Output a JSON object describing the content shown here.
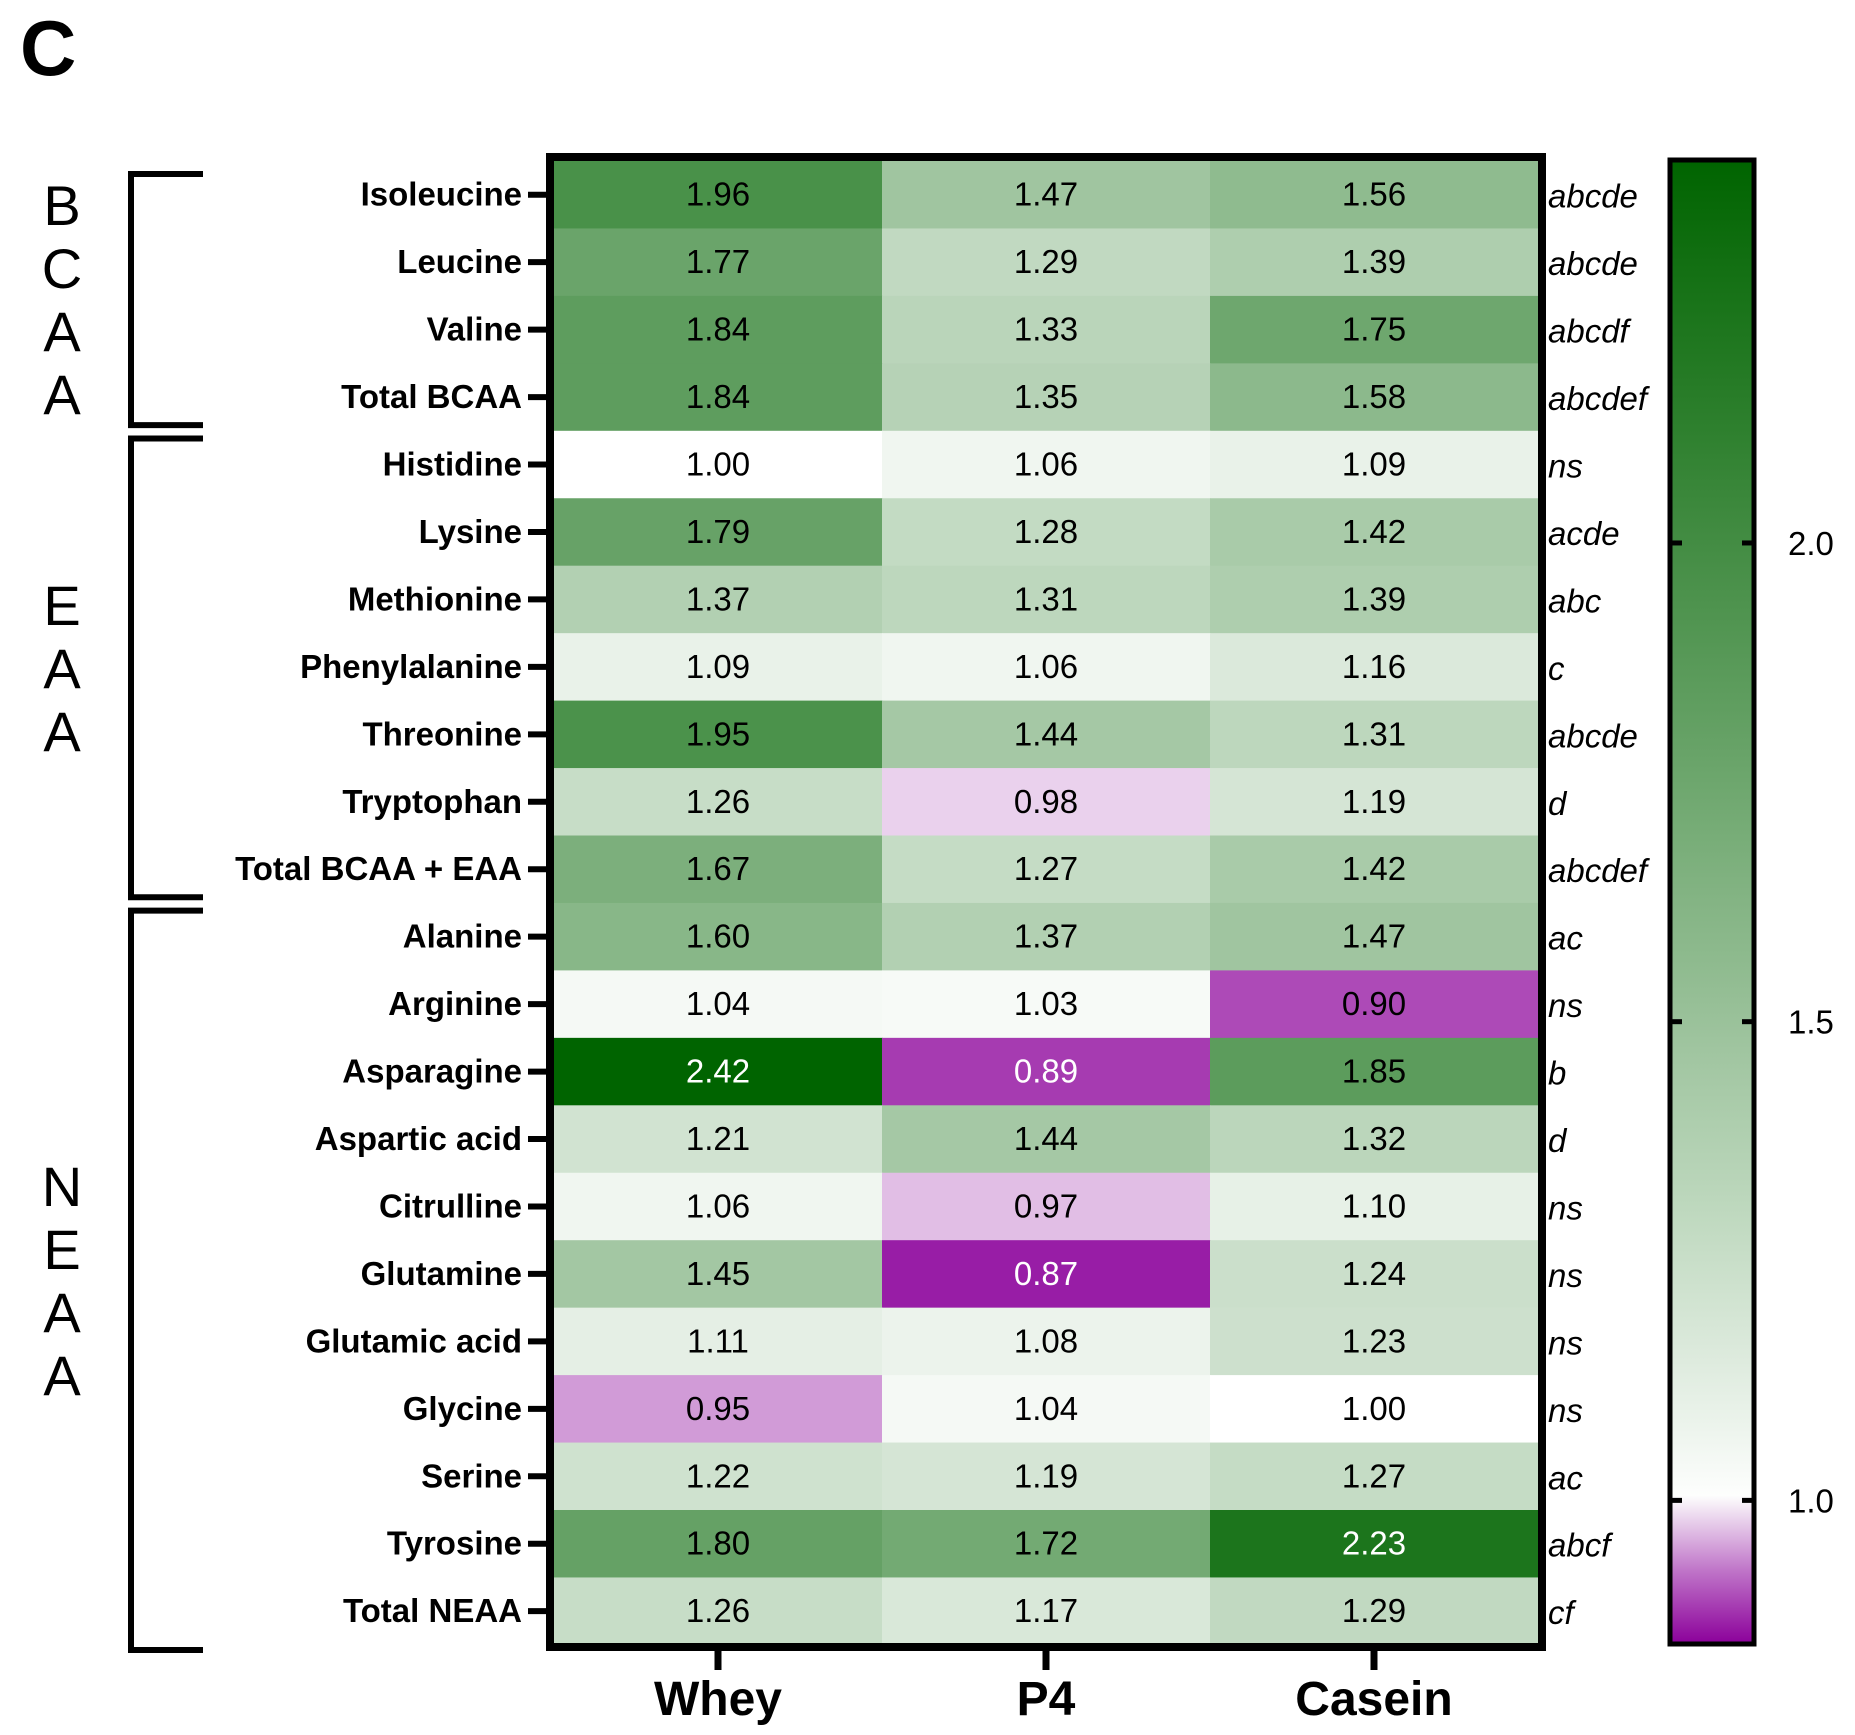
{
  "panel_label": "C",
  "chart_data": {
    "type": "heatmap",
    "title": "",
    "columns": [
      "Whey",
      "P4",
      "Casein"
    ],
    "rows": [
      {
        "name": "Isoleucine",
        "values": [
          1.96,
          1.47,
          1.56
        ],
        "sig": "abcde"
      },
      {
        "name": "Leucine",
        "values": [
          1.77,
          1.29,
          1.39
        ],
        "sig": "abcde"
      },
      {
        "name": "Valine",
        "values": [
          1.84,
          1.33,
          1.75
        ],
        "sig": "abcdf"
      },
      {
        "name": "Total BCAA",
        "values": [
          1.84,
          1.35,
          1.58
        ],
        "sig": "abcdef"
      },
      {
        "name": "Histidine",
        "values": [
          1.0,
          1.06,
          1.09
        ],
        "sig": "ns"
      },
      {
        "name": "Lysine",
        "values": [
          1.79,
          1.28,
          1.42
        ],
        "sig": "acde"
      },
      {
        "name": "Methionine",
        "values": [
          1.37,
          1.31,
          1.39
        ],
        "sig": "abc"
      },
      {
        "name": "Phenylalanine",
        "values": [
          1.09,
          1.06,
          1.16
        ],
        "sig": "c"
      },
      {
        "name": "Threonine",
        "values": [
          1.95,
          1.44,
          1.31
        ],
        "sig": "abcde"
      },
      {
        "name": "Tryptophan",
        "values": [
          1.26,
          0.98,
          1.19
        ],
        "sig": "d"
      },
      {
        "name": "Total BCAA + EAA",
        "values": [
          1.67,
          1.27,
          1.42
        ],
        "sig": "abcdef"
      },
      {
        "name": "Alanine",
        "values": [
          1.6,
          1.37,
          1.47
        ],
        "sig": "ac"
      },
      {
        "name": "Arginine",
        "values": [
          1.04,
          1.03,
          0.9
        ],
        "sig": "ns"
      },
      {
        "name": "Asparagine",
        "values": [
          2.42,
          0.89,
          1.85
        ],
        "sig": "b"
      },
      {
        "name": "Aspartic acid",
        "values": [
          1.21,
          1.44,
          1.32
        ],
        "sig": "d"
      },
      {
        "name": "Citrulline",
        "values": [
          1.06,
          0.97,
          1.1
        ],
        "sig": "ns"
      },
      {
        "name": "Glutamine",
        "values": [
          1.45,
          0.87,
          1.24
        ],
        "sig": "ns"
      },
      {
        "name": "Glutamic acid",
        "values": [
          1.11,
          1.08,
          1.23
        ],
        "sig": "ns"
      },
      {
        "name": "Glycine",
        "values": [
          0.95,
          1.04,
          1.0
        ],
        "sig": "ns"
      },
      {
        "name": "Serine",
        "values": [
          1.22,
          1.19,
          1.27
        ],
        "sig": "ac"
      },
      {
        "name": "Tyrosine",
        "values": [
          1.8,
          1.72,
          2.23
        ],
        "sig": "abcf"
      },
      {
        "name": "Total NEAA",
        "values": [
          1.26,
          1.17,
          1.29
        ],
        "sig": "cf"
      }
    ],
    "groups": [
      {
        "label": "BCAA",
        "letters": [
          "B",
          "C",
          "A",
          "A"
        ],
        "row_start": 0,
        "row_end": 3
      },
      {
        "label": "EAA",
        "letters": [
          "E",
          "A",
          "A"
        ],
        "row_start": 4,
        "row_end": 10
      },
      {
        "label": "NEAA",
        "letters": [
          "N",
          "E",
          "A",
          "A"
        ],
        "row_start": 11,
        "row_end": 21
      }
    ],
    "colorbar": {
      "range": [
        0.85,
        2.4
      ],
      "ticks": [
        2.0,
        1.5,
        1.0
      ],
      "tick_labels": [
        "2.0",
        "1.5",
        "1.0"
      ],
      "low_color": "#8b009a",
      "mid_color": "#ffffff",
      "high_color": "#006400",
      "mid_value": 1.0
    }
  }
}
